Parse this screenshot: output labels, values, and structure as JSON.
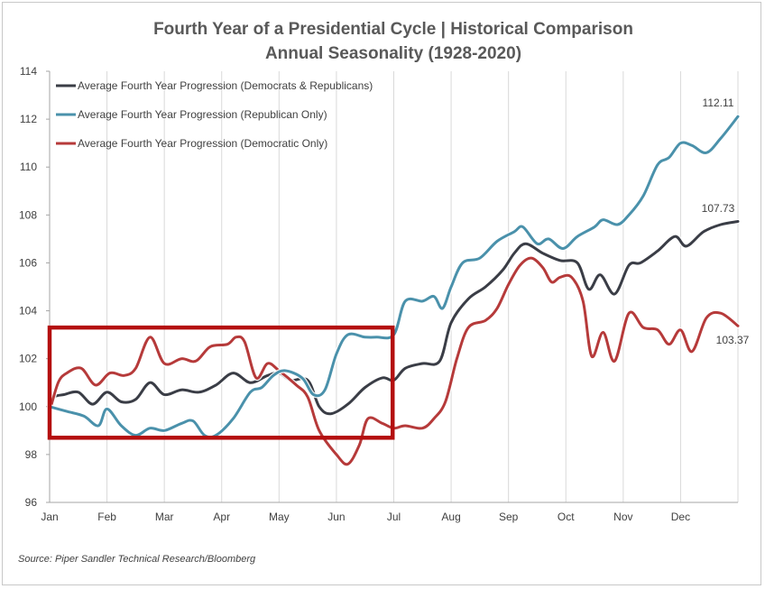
{
  "chart_data": {
    "type": "line",
    "title": "Fourth  Year of a Presidential Cycle | Historical Comparison",
    "subtitle": "Annual Seasonality (1928-2020)",
    "xlabel": "",
    "ylabel": "",
    "ylim": [
      96,
      114
    ],
    "yticks": [
      "96",
      "98",
      "100",
      "102",
      "104",
      "106",
      "108",
      "110",
      "112",
      "114"
    ],
    "x_tick_labels": [
      "Jan",
      "Feb",
      "Mar",
      "Apr",
      "May",
      "Jun",
      "Jul",
      "Aug",
      "Sep",
      "Oct",
      "Nov",
      "Dec"
    ],
    "x_range": [
      0,
      12
    ],
    "grid": "vertical",
    "legend_position": "top-left",
    "series": [
      {
        "name": "Average Fourth Year Progression (Democrats & Republicans)",
        "color": "#3a3d46",
        "points": [
          [
            0,
            100
          ],
          [
            0.08,
            100.4
          ],
          [
            0.25,
            100.5
          ],
          [
            0.5,
            100.6
          ],
          [
            0.75,
            100.1
          ],
          [
            1.0,
            100.6
          ],
          [
            1.25,
            100.2
          ],
          [
            1.5,
            100.3
          ],
          [
            1.75,
            101.0
          ],
          [
            2.0,
            100.5
          ],
          [
            2.3,
            100.7
          ],
          [
            2.6,
            100.6
          ],
          [
            2.9,
            100.9
          ],
          [
            3.2,
            101.4
          ],
          [
            3.5,
            101.0
          ],
          [
            3.8,
            101.3
          ],
          [
            4.0,
            101.4
          ],
          [
            4.2,
            101.1
          ],
          [
            4.5,
            101.1
          ],
          [
            4.7,
            100.0
          ],
          [
            4.9,
            99.7
          ],
          [
            5.2,
            100.1
          ],
          [
            5.5,
            100.8
          ],
          [
            5.8,
            101.2
          ],
          [
            6.0,
            101.1
          ],
          [
            6.2,
            101.6
          ],
          [
            6.5,
            101.8
          ],
          [
            6.8,
            101.9
          ],
          [
            7.0,
            103.5
          ],
          [
            7.3,
            104.5
          ],
          [
            7.6,
            105.0
          ],
          [
            7.9,
            105.7
          ],
          [
            8.1,
            106.4
          ],
          [
            8.3,
            106.8
          ],
          [
            8.6,
            106.4
          ],
          [
            8.9,
            106.1
          ],
          [
            9.2,
            106.0
          ],
          [
            9.4,
            104.9
          ],
          [
            9.6,
            105.5
          ],
          [
            9.85,
            104.7
          ],
          [
            10.1,
            105.9
          ],
          [
            10.3,
            106.0
          ],
          [
            10.6,
            106.5
          ],
          [
            10.9,
            107.1
          ],
          [
            11.1,
            106.7
          ],
          [
            11.4,
            107.3
          ],
          [
            11.7,
            107.6
          ],
          [
            12.0,
            107.73
          ]
        ]
      },
      {
        "name": "Average Fourth Year Progression (Republican Only)",
        "color": "#4a91ab",
        "points": [
          [
            0,
            100.0
          ],
          [
            0.3,
            99.8
          ],
          [
            0.6,
            99.6
          ],
          [
            0.85,
            99.2
          ],
          [
            1.0,
            99.9
          ],
          [
            1.25,
            99.2
          ],
          [
            1.5,
            98.8
          ],
          [
            1.75,
            99.1
          ],
          [
            2.0,
            99.0
          ],
          [
            2.3,
            99.3
          ],
          [
            2.5,
            99.4
          ],
          [
            2.7,
            98.8
          ],
          [
            2.9,
            98.8
          ],
          [
            3.2,
            99.5
          ],
          [
            3.5,
            100.6
          ],
          [
            3.7,
            100.8
          ],
          [
            3.9,
            101.3
          ],
          [
            4.1,
            101.5
          ],
          [
            4.4,
            101.2
          ],
          [
            4.6,
            100.5
          ],
          [
            4.8,
            100.7
          ],
          [
            5.0,
            102.2
          ],
          [
            5.2,
            103.0
          ],
          [
            5.5,
            102.9
          ],
          [
            5.7,
            102.9
          ],
          [
            6.0,
            103.0
          ],
          [
            6.2,
            104.4
          ],
          [
            6.5,
            104.4
          ],
          [
            6.7,
            104.6
          ],
          [
            6.85,
            104.1
          ],
          [
            7.0,
            105.0
          ],
          [
            7.2,
            106.0
          ],
          [
            7.5,
            106.2
          ],
          [
            7.8,
            106.9
          ],
          [
            8.1,
            107.3
          ],
          [
            8.25,
            107.5
          ],
          [
            8.5,
            106.8
          ],
          [
            8.7,
            107.0
          ],
          [
            8.95,
            106.6
          ],
          [
            9.2,
            107.1
          ],
          [
            9.5,
            107.5
          ],
          [
            9.65,
            107.8
          ],
          [
            9.9,
            107.6
          ],
          [
            10.1,
            108.0
          ],
          [
            10.35,
            108.8
          ],
          [
            10.6,
            110.1
          ],
          [
            10.8,
            110.4
          ],
          [
            11.0,
            111.0
          ],
          [
            11.2,
            110.9
          ],
          [
            11.45,
            110.6
          ],
          [
            11.7,
            111.2
          ],
          [
            12.0,
            112.11
          ]
        ]
      },
      {
        "name": "Average Fourth Year Progression (Democratic Only)",
        "color": "#b63a3a",
        "points": [
          [
            0,
            99.8
          ],
          [
            0.15,
            101.0
          ],
          [
            0.3,
            101.4
          ],
          [
            0.55,
            101.6
          ],
          [
            0.8,
            100.9
          ],
          [
            1.05,
            101.4
          ],
          [
            1.3,
            101.3
          ],
          [
            1.5,
            101.6
          ],
          [
            1.75,
            102.9
          ],
          [
            2.0,
            101.8
          ],
          [
            2.3,
            102.0
          ],
          [
            2.55,
            101.9
          ],
          [
            2.8,
            102.5
          ],
          [
            3.1,
            102.6
          ],
          [
            3.25,
            102.9
          ],
          [
            3.4,
            102.7
          ],
          [
            3.6,
            101.2
          ],
          [
            3.8,
            101.8
          ],
          [
            4.0,
            101.5
          ],
          [
            4.3,
            100.9
          ],
          [
            4.5,
            100.4
          ],
          [
            4.7,
            99.0
          ],
          [
            5.0,
            98.0
          ],
          [
            5.2,
            97.6
          ],
          [
            5.4,
            98.4
          ],
          [
            5.55,
            99.5
          ],
          [
            5.8,
            99.3
          ],
          [
            6.0,
            99.1
          ],
          [
            6.2,
            99.2
          ],
          [
            6.5,
            99.1
          ],
          [
            6.7,
            99.5
          ],
          [
            6.9,
            100.2
          ],
          [
            7.1,
            102.0
          ],
          [
            7.3,
            103.3
          ],
          [
            7.6,
            103.6
          ],
          [
            7.8,
            104.1
          ],
          [
            8.0,
            105.1
          ],
          [
            8.2,
            105.9
          ],
          [
            8.4,
            106.2
          ],
          [
            8.6,
            105.8
          ],
          [
            8.75,
            105.2
          ],
          [
            8.9,
            105.4
          ],
          [
            9.1,
            105.4
          ],
          [
            9.3,
            104.4
          ],
          [
            9.45,
            102.1
          ],
          [
            9.65,
            103.1
          ],
          [
            9.85,
            101.9
          ],
          [
            10.1,
            103.9
          ],
          [
            10.35,
            103.3
          ],
          [
            10.6,
            103.2
          ],
          [
            10.8,
            102.6
          ],
          [
            11.0,
            103.2
          ],
          [
            11.2,
            102.3
          ],
          [
            11.45,
            103.7
          ],
          [
            11.7,
            103.9
          ],
          [
            12.0,
            103.37
          ]
        ]
      }
    ],
    "end_labels": [
      "112.11",
      "107.73",
      "103.37"
    ],
    "highlight_box": {
      "x_range": [
        0,
        5.98
      ],
      "y_range": [
        98.7,
        103.3
      ],
      "color": "#b40f0f"
    }
  },
  "source": "Source: Piper Sandler Technical Research/Bloomberg"
}
